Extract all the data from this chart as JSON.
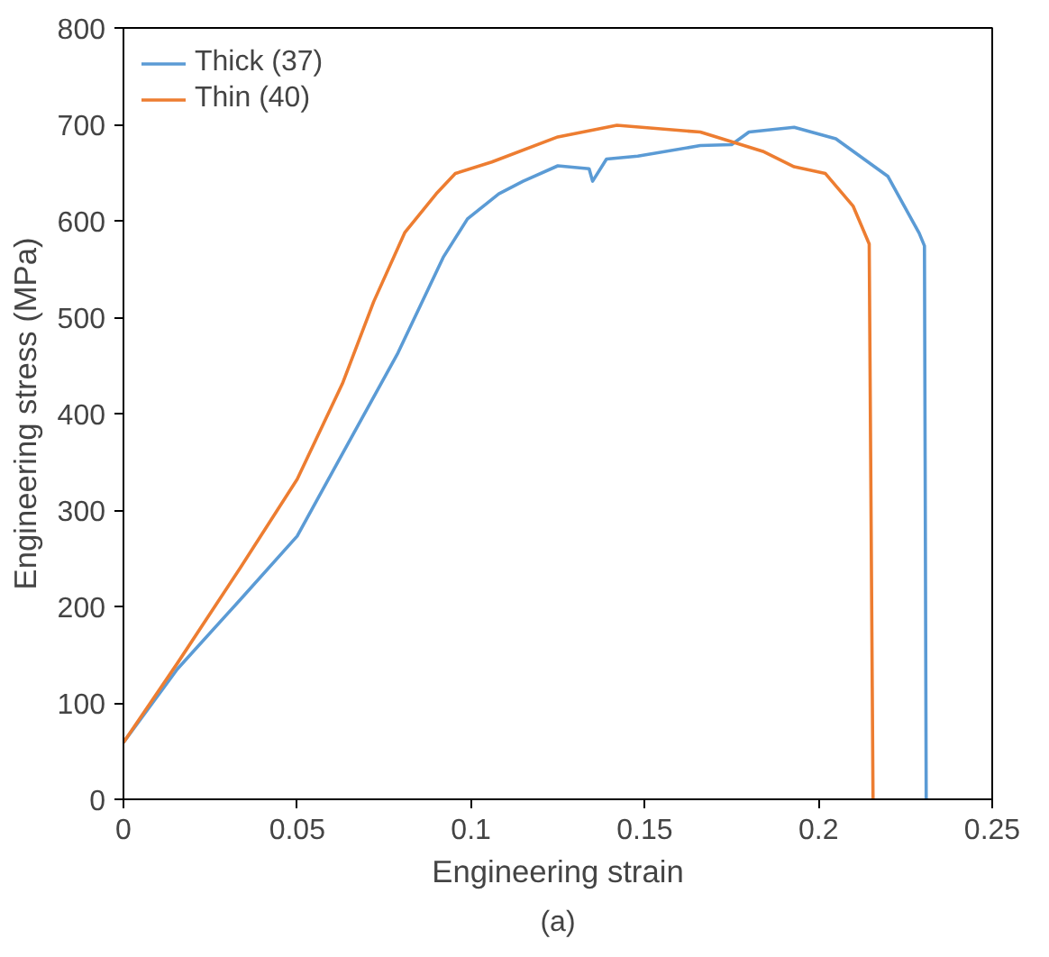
{
  "chart_data": {
    "type": "line",
    "xlabel": "Engineering strain",
    "ylabel": "Engineering stress (MPa)",
    "annotations": [
      "(a)"
    ],
    "xlim": [
      0,
      0.25
    ],
    "xticks": [
      0,
      0.05,
      0.1,
      0.15,
      0.2,
      0.25
    ],
    "ylim": [
      0,
      800
    ],
    "yticks": [
      0,
      100,
      200,
      300,
      400,
      500,
      600,
      700,
      800
    ],
    "grid": false,
    "legend": "top left",
    "line_style": "solid",
    "series": [
      {
        "name": "Thick (37)",
        "color": "#5b9bd5",
        "x": [
          0,
          0.0155,
          0.0336,
          0.05,
          0.066,
          0.079,
          0.092,
          0.099,
          0.108,
          0.115,
          0.125,
          0.134,
          0.135,
          0.139,
          0.148,
          0.166,
          0.175,
          0.18,
          0.193,
          0.205,
          0.22,
          0.229,
          0.2305,
          0.231
        ],
        "values": [
          59,
          135,
          207,
          273,
          378,
          463,
          562,
          602,
          628,
          641,
          657,
          654,
          641,
          664,
          667,
          678,
          679,
          692,
          697,
          685,
          646,
          587,
          574,
          0
        ]
      },
      {
        "name": "Thin (40)",
        "color": "#ed7d31",
        "x": [
          0,
          0.0155,
          0.0336,
          0.05,
          0.063,
          0.072,
          0.081,
          0.09,
          0.0955,
          0.106,
          0.125,
          0.142,
          0.166,
          0.184,
          0.193,
          0.202,
          0.21,
          0.2146,
          0.2157
        ],
        "values": [
          59,
          141,
          240,
          332,
          431,
          516,
          588,
          628,
          649,
          661,
          687,
          699,
          692,
          672,
          656,
          649,
          615,
          576,
          0
        ]
      }
    ]
  }
}
